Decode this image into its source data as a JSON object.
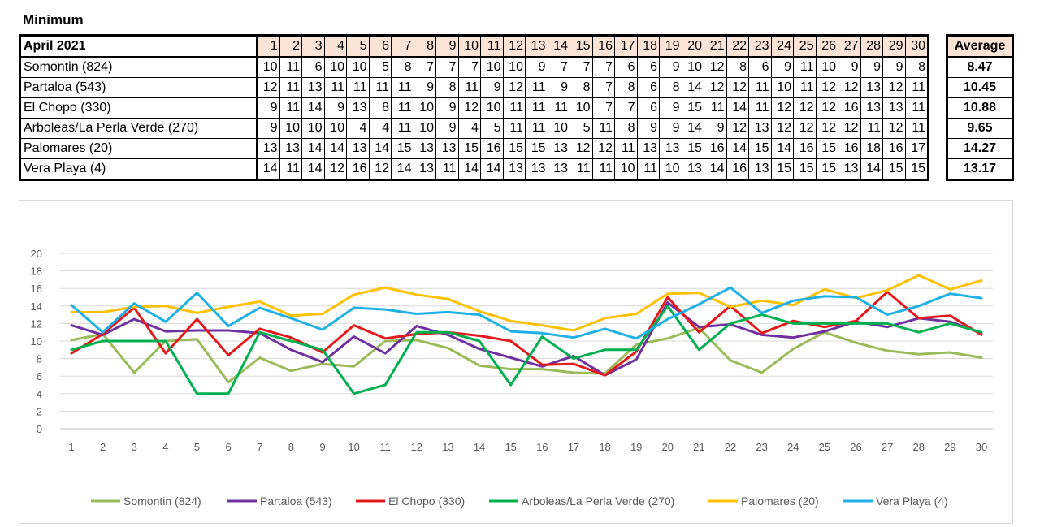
{
  "section_title": "Minimum",
  "table": {
    "month_label": "April 2021",
    "days": [
      "1",
      "2",
      "3",
      "4",
      "5",
      "6",
      "7",
      "8",
      "9",
      "10",
      "11",
      "12",
      "13",
      "14",
      "15",
      "16",
      "17",
      "18",
      "19",
      "20",
      "21",
      "22",
      "23",
      "24",
      "25",
      "26",
      "27",
      "28",
      "29",
      "30"
    ],
    "average_label": "Average",
    "rows": [
      {
        "name": "Somontin (824)",
        "values": [
          10,
          11,
          6,
          10,
          10,
          5,
          8,
          7,
          7,
          7,
          10,
          10,
          9,
          7,
          7,
          7,
          6,
          6,
          9,
          10,
          12,
          8,
          6,
          9,
          11,
          10,
          9,
          9,
          9,
          8
        ],
        "average": "8.47"
      },
      {
        "name": "Partaloa (543)",
        "values": [
          12,
          11,
          13,
          11,
          11,
          11,
          11,
          9,
          8,
          11,
          9,
          12,
          11,
          9,
          8,
          7,
          8,
          6,
          8,
          14,
          12,
          12,
          11,
          10,
          11,
          12,
          12,
          13,
          12,
          11
        ],
        "average": "10.45"
      },
      {
        "name": "El Chopo (330)",
        "values": [
          9,
          11,
          14,
          9,
          13,
          8,
          11,
          10,
          9,
          12,
          10,
          11,
          11,
          11,
          10,
          7,
          7,
          6,
          9,
          15,
          11,
          14,
          11,
          12,
          12,
          12,
          16,
          13,
          13,
          11
        ],
        "average": "10.88"
      },
      {
        "name": "Arboleas/La Perla Verde (270)",
        "values": [
          9,
          10,
          10,
          10,
          4,
          4,
          11,
          10,
          9,
          4,
          5,
          11,
          11,
          10,
          5,
          11,
          8,
          9,
          9,
          14,
          9,
          12,
          13,
          12,
          12,
          12,
          12,
          11,
          12,
          11
        ],
        "average": "9.65"
      },
      {
        "name": "Palomares (20)",
        "values": [
          13,
          13,
          14,
          14,
          13,
          14,
          15,
          13,
          13,
          15,
          16,
          15,
          15,
          13,
          12,
          12,
          11,
          13,
          13,
          15,
          16,
          14,
          15,
          14,
          16,
          15,
          16,
          18,
          16,
          17
        ],
        "average": "14.27"
      },
      {
        "name": "Vera Playa (4)",
        "values": [
          14,
          11,
          14,
          12,
          16,
          12,
          14,
          13,
          11,
          14,
          14,
          13,
          13,
          13,
          11,
          11,
          10,
          11,
          10,
          13,
          14,
          16,
          13,
          15,
          15,
          15,
          13,
          14,
          15,
          15
        ],
        "average": "13.17"
      }
    ]
  },
  "chart_data": {
    "type": "line",
    "title": "",
    "xlabel": "",
    "ylabel": "",
    "x": [
      1,
      2,
      3,
      4,
      5,
      6,
      7,
      8,
      9,
      10,
      11,
      12,
      13,
      14,
      15,
      16,
      17,
      18,
      19,
      20,
      21,
      22,
      23,
      24,
      25,
      26,
      27,
      28,
      29,
      30
    ],
    "y_ticks": [
      0,
      2,
      4,
      6,
      8,
      10,
      12,
      14,
      16,
      18,
      20
    ],
    "ylim": [
      0,
      20
    ],
    "grid": true,
    "legend": "bottom",
    "series": [
      {
        "name": "Somontin (824)",
        "color": "#9bbb59",
        "values": [
          10.1,
          10.8,
          6.4,
          10,
          10.2,
          5.3,
          8.1,
          6.6,
          7.4,
          7.1,
          10,
          10.1,
          9.2,
          7.2,
          6.8,
          6.8,
          6.4,
          6.3,
          9.6,
          10.3,
          11.5,
          7.8,
          6.4,
          9.1,
          11,
          9.8,
          8.9,
          8.5,
          8.7,
          8.1
        ]
      },
      {
        "name": "Partaloa (543)",
        "color": "#7030a0",
        "values": [
          11.8,
          10.7,
          12.5,
          11.1,
          11.2,
          11.2,
          10.9,
          9,
          7.6,
          10.5,
          8.6,
          11.7,
          10.7,
          9.1,
          8.1,
          7.1,
          8.3,
          6.1,
          7.9,
          14.4,
          11.6,
          11.9,
          10.7,
          10.4,
          11.1,
          12.2,
          11.6,
          12.6,
          12.2,
          10.9
        ]
      },
      {
        "name": "El Chopo (330)",
        "color": "#e31a1c",
        "values": [
          8.6,
          10.8,
          13.8,
          8.6,
          12.5,
          8.4,
          11.4,
          10.4,
          8.7,
          11.8,
          10.3,
          10.8,
          11,
          10.6,
          10,
          7.3,
          7.4,
          6.1,
          8.8,
          15,
          11,
          14,
          10.9,
          12.3,
          11.6,
          12.3,
          15.6,
          12.6,
          12.9,
          10.7
        ]
      },
      {
        "name": "Arboleas/La Perla Verde (270)",
        "color": "#00b050",
        "values": [
          9,
          10,
          10,
          10,
          4,
          4,
          11,
          10,
          9,
          4,
          5,
          11,
          11,
          10,
          5,
          10.5,
          8,
          9,
          9,
          14,
          9,
          12,
          13,
          12,
          12,
          12,
          12,
          11,
          12,
          11
        ]
      },
      {
        "name": "Palomares (20)",
        "color": "#ffc000",
        "values": [
          13.3,
          13.3,
          13.9,
          14,
          13.2,
          13.9,
          14.5,
          12.9,
          13.1,
          15.3,
          16.1,
          15.3,
          14.8,
          13.4,
          12.3,
          11.8,
          11.2,
          12.6,
          13.1,
          15.4,
          15.5,
          13.9,
          14.6,
          14.1,
          15.9,
          14.9,
          15.8,
          17.5,
          15.9,
          16.9
        ]
      },
      {
        "name": "Vera Playa (4)",
        "color": "#1fb1e6",
        "values": [
          14.1,
          11,
          14.3,
          12.2,
          15.5,
          11.7,
          13.8,
          12.6,
          11.3,
          13.8,
          13.6,
          13.1,
          13.3,
          13,
          11.1,
          10.9,
          10.4,
          11.4,
          10.3,
          12.5,
          14.2,
          16.1,
          13.2,
          14.6,
          15.1,
          15,
          13,
          14,
          15.4,
          14.9
        ]
      }
    ]
  }
}
